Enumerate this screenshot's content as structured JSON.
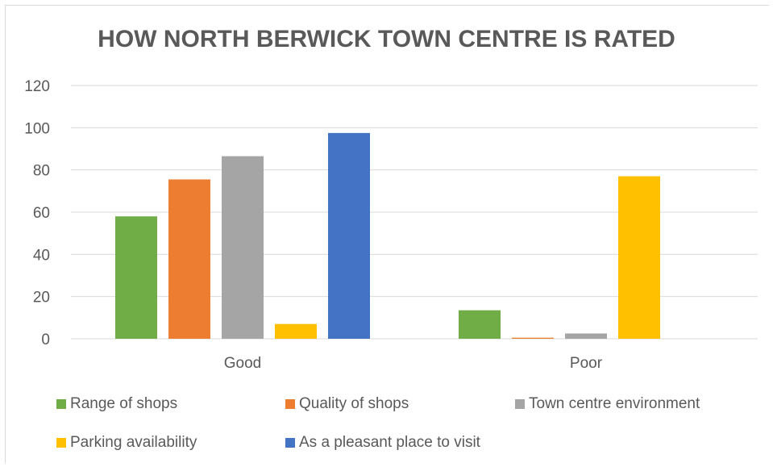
{
  "chart_data": {
    "type": "bar",
    "title": "HOW NORTH BERWICK TOWN CENTRE IS RATED",
    "categories": [
      "Good",
      "Poor"
    ],
    "series": [
      {
        "name": "Range of shops",
        "color": "#70ad47",
        "values": [
          58,
          13.5
        ]
      },
      {
        "name": "Quality of shops",
        "color": "#ed7d31",
        "values": [
          75.5,
          0.5
        ]
      },
      {
        "name": "Town centre environment",
        "color": "#a5a5a5",
        "values": [
          86.5,
          2.5
        ]
      },
      {
        "name": "Parking availability",
        "color": "#ffc000",
        "values": [
          7,
          77
        ]
      },
      {
        "name": "As a pleasant place to visit",
        "color": "#4472c4",
        "values": [
          97.5,
          0
        ]
      }
    ],
    "yticks": [
      "0",
      "20",
      "40",
      "60",
      "80",
      "100",
      "120"
    ],
    "ylim": [
      0,
      120
    ],
    "grid": true,
    "legend_position": "bottom"
  }
}
